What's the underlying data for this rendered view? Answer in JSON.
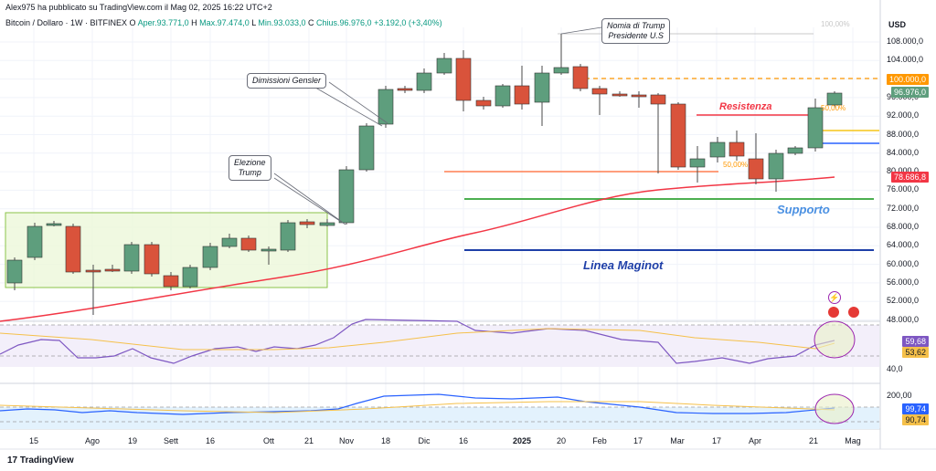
{
  "header": {
    "publisher": "Alex975 ha pubblicato su TradingView.com il Mag 02, 2025 16:22 UTC+2",
    "symbol": "Bitcoin / Dollaro · 1W · BITFINEX",
    "o_label": "O",
    "o_val": "Aper.93.771,0",
    "h_label": "H",
    "h_val": "Max.97.474,0",
    "l_label": "L",
    "l_val": "Min.93.033,0",
    "c_label": "C",
    "c_val": "Chius.96.976,0",
    "change": "+3.192,0 (+3,40%)"
  },
  "axis": {
    "currency": "USD",
    "ticks": [
      "108.000,0",
      "104.000,0",
      "100.000,0",
      "96.000,0",
      "92.000,0",
      "88.000,0",
      "84.000,0",
      "80.000,0",
      "76.000,0",
      "72.000,0",
      "68.000,0",
      "64.000,0",
      "60.000,0",
      "56.000,0",
      "52.000,0",
      "48.000,0"
    ],
    "rsi_tick": "40,0",
    "ind2_tick": "200,00",
    "ind2_tick2": "100,00",
    "faded_top": "100,00%"
  },
  "tags": {
    "t100k": "100.000,0",
    "price": "96.976,0",
    "ma": "78.686,8",
    "rsi1": "59,68",
    "rsi2": "53,62",
    "ind1": "99,74",
    "ind2": "90,74"
  },
  "x_labels": [
    "15",
    "Ago",
    "19",
    "Sett",
    "16",
    "Ott",
    "21",
    "Nov",
    "18",
    "Dic",
    "16",
    "2025",
    "20",
    "Feb",
    "17",
    "Mar",
    "17",
    "Apr",
    "21",
    "Mag"
  ],
  "annotations": {
    "trump_nomina": "Nomia di Trump\nPresidente U.S",
    "gensler": "Dimissioni Gensler",
    "elezione": "Elezione\nTrump",
    "resistenza": "Resistenza",
    "supporto": "Supporto",
    "maginot": "Linea Maginot",
    "fib50a": "50,00%",
    "fib50b": "50,00%"
  },
  "footer": {
    "brand": "TradingView"
  },
  "colors": {
    "up": "#5e9e7d",
    "down": "#d9533b",
    "ma": "#f23645",
    "blue": "#1e3fa8",
    "green": "#4caf50",
    "orange": "#ff9800",
    "rsi": "#7e57c2"
  }
}
